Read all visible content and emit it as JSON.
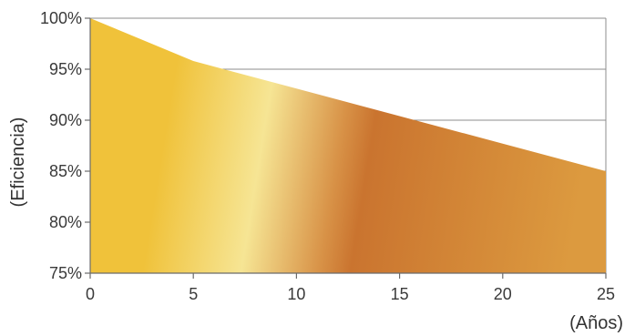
{
  "chart_data": {
    "type": "area",
    "x": [
      0,
      5,
      10,
      15,
      20,
      25
    ],
    "y": [
      100,
      95.8,
      93.1,
      90.4,
      87.7,
      85
    ],
    "xlim": [
      0,
      25
    ],
    "ylim": [
      75,
      100
    ],
    "xticks": [
      0,
      5,
      10,
      15,
      20,
      25
    ],
    "yticks": [
      75,
      80,
      85,
      90,
      95,
      100
    ],
    "xtick_labels": [
      "0",
      "5",
      "10",
      "15",
      "20",
      "25"
    ],
    "ytick_labels": [
      "75%",
      "80%",
      "85%",
      "90%",
      "95%",
      "100%"
    ],
    "xlabel": "(Años)",
    "ylabel": "(Eficiencia)",
    "grid": true,
    "gradient_colors": [
      "#f0c23a",
      "#f6e594",
      "#cf7a33",
      "#dc9a3f"
    ]
  }
}
